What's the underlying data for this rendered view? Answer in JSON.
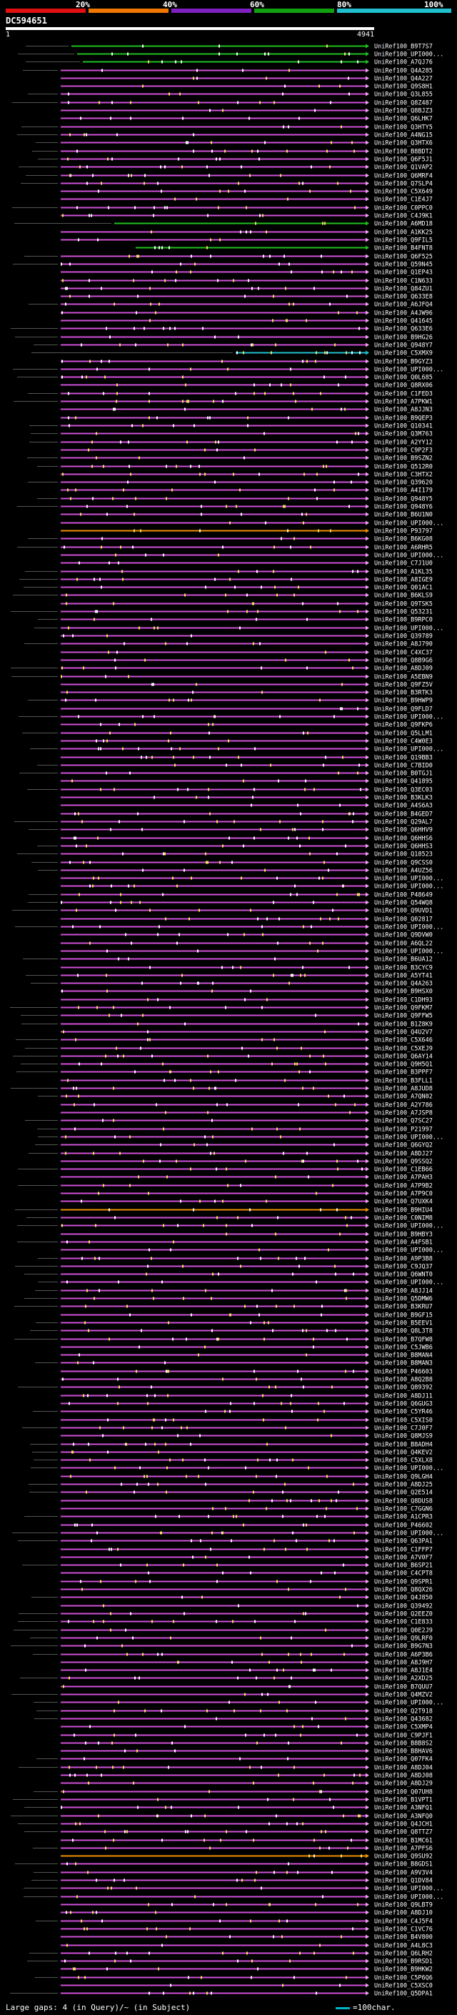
{
  "legend": {
    "labels": [
      "20%",
      "40%",
      "60%",
      "80%",
      "100%"
    ],
    "colors": [
      "#e01010",
      "#f07800",
      "#8020c0",
      "#10a010",
      "#20c0d0"
    ]
  },
  "query": {
    "id": "DC594651",
    "start": "1",
    "end": "4941"
  },
  "hits": [
    "UniRef100_B9T7S7",
    "UniRef100_UPI000...",
    "UniRef100_A7QJ76",
    "UniRef100_Q4A285",
    "UniRef100_Q4A227",
    "UniRef100_Q9S8H1",
    "UniRef100_Q3L855",
    "UniRef100_Q8Z487",
    "UniRef100_Q8BJZ3",
    "UniRef100_Q6LHK7",
    "UniRef100_Q3HTY5",
    "UniRef100_A4NG15",
    "UniRef100_Q3HTX6",
    "UniRef100_B8BDT2",
    "UniRef100_Q6F5J1",
    "UniRef100_Q1VAP2",
    "UniRef100_Q6MRF4",
    "UniRef100_Q7SLP4",
    "UniRef100_C5X649",
    "UniRef100_C1E4J7",
    "UniRef100_C0PPC0",
    "UniRef100_C4J9K1",
    "UniRef100_A6MD18",
    "UniRef100_A1KK25",
    "UniRef100_Q9FIL5",
    "UniRef100_B4FNT8",
    "UniRef100_Q6F525",
    "UniRef100_Q59N45",
    "UniRef100_Q1EP43",
    "UniRef100_C1N633",
    "UniRef100_Q84ZU1",
    "UniRef100_Q633E8",
    "UniRef100_A6JFQ4",
    "UniRef100_A4JW96",
    "UniRef100_Q41645",
    "UniRef100_Q633E6",
    "UniRef100_B9HG26",
    "UniRef100_Q948Y7",
    "UniRef100_C5XMX9",
    "UniRef100_B9GYZ3",
    "UniRef100_UPI000...",
    "UniRef100_Q0L685",
    "UniRef100_Q8RX06",
    "UniRef100_C1FED3",
    "UniRef100_A7PKW1",
    "UniRef100_A8JJN3",
    "UniRef100_B9QEP3",
    "UniRef100_Q10341",
    "UniRef100_Q3M763",
    "UniRef100_A2YY12",
    "UniRef100_C9P2F3",
    "UniRef100_B9SZN2",
    "UniRef100_Q512R0",
    "UniRef100_C3HTX2",
    "UniRef100_Q39620",
    "UniRef100_A4I179",
    "UniRef100_Q948Y5",
    "UniRef100_Q948Y6",
    "UniRef100_B6U1N0",
    "UniRef100_UPI000...",
    "UniRef100_P93797",
    "UniRef100_B6KG08",
    "UniRef100_A6RHR5",
    "UniRef100_UPI000...",
    "UniRef100_C7J1U0",
    "UniRef100_A1KL35",
    "UniRef100_A8IGE9",
    "UniRef100_Q01AC1",
    "UniRef100_B6KLS9",
    "UniRef100_Q9TSK5",
    "UniRef100_Q53231",
    "UniRef100_B9RPC0",
    "UniRef100_UPI000...",
    "UniRef100_Q39789",
    "UniRef100_A8J790",
    "UniRef100_C4XC37",
    "UniRef100_Q8B9G6",
    "UniRef100_A8DJ09",
    "UniRef100_A5EBN9",
    "UniRef100_Q9FZ5V",
    "UniRef100_B3RTK3",
    "UniRef100_B9HWP9",
    "UniRef100_Q9FLD7",
    "UniRef100_UPI000...",
    "UniRef100_Q9FKP6",
    "UniRef100_Q5LLM1",
    "UniRef100_C4W0E3",
    "UniRef100_UPI000...",
    "UniRef100_Q19BB3",
    "UniRef100_C7BID0",
    "UniRef100_B0TGJ1",
    "UniRef100_Q41895",
    "UniRef100_Q3EC03",
    "UniRef100_B3KLK3",
    "UniRef100_A4S6A3",
    "UniRef100_B4GED7",
    "UniRef100_Q29AL7",
    "UniRef100_Q6HHV9",
    "UniRef100_Q6HHS6",
    "UniRef100_Q6HHS3",
    "UniRef100_Q18523",
    "UniRef100_Q9CSS0",
    "UniRef100_A4UZ56",
    "UniRef100_UPI000...",
    "UniRef100_UPI000...",
    "UniRef100_P48649",
    "UniRef100_Q54WQ8",
    "UniRef100_Q9UVD1",
    "UniRef100_Q02817",
    "UniRef100_UPI000...",
    "UniRef100_Q9DVW0",
    "UniRef100_A6QL22",
    "UniRef100_UPI000...",
    "UniRef100_B6UA12",
    "UniRef100_B3CYC9",
    "UniRef100_A5YT41",
    "UniRef100_Q4A263",
    "UniRef100_B9HSX0",
    "UniRef100_C1DH93",
    "UniRef100_Q9FKM7",
    "UniRef100_Q9FFW5",
    "UniRef100_B1Z8K9",
    "UniRef100_Q4U2V7",
    "UniRef100_C5X646",
    "UniRef100_C5XEJ9",
    "UniRef100_Q6AY14",
    "UniRef100_Q9H5Q1",
    "UniRef100_B3PPF7",
    "UniRef100_B3FLL1",
    "UniRef100_A8JUD8",
    "UniRef100_A7QN02",
    "UniRef100_A2Y786",
    "UniRef100_A7JSP8",
    "UniRef100_Q7SC27",
    "UniRef100_P21997",
    "UniRef100_UPI000...",
    "UniRef100_Q6GYQ2",
    "UniRef100_A8DJ27",
    "UniRef100_Q9SSQ2",
    "UniRef100_C1EB66",
    "UniRef100_A7PAH3",
    "UniRef100_A7P9B2",
    "UniRef100_A7P9C0",
    "UniRef100_Q7UXK4",
    "UniRef100_B9HIU4",
    "UniRef100_C0NIM8",
    "UniRef100_UPI000...",
    "UniRef100_B9HBY3",
    "UniRef100_A4FSB1",
    "UniRef100_UPI000...",
    "UniRef100_A9P3B8",
    "UniRef100_C9JQ37",
    "UniRef100_Q6WNT0",
    "UniRef100_UPI000...",
    "UniRef100_A8JJ14",
    "UniRef100_Q5DMW6",
    "UniRef100_B3KRU7",
    "UniRef100_B9GF15",
    "UniRef100_B5EEV1",
    "UniRef100_Q8L3T8",
    "UniRef100_B7QFW8",
    "UniRef100_C5JWB6",
    "UniRef100_B8MAN4",
    "UniRef100_B8MAN3",
    "UniRef100_P46603",
    "UniRef100_A8Q2B8",
    "UniRef100_Q89392",
    "UniRef100_A8DJ11",
    "UniRef100_Q6GUG3",
    "UniRef100_C5YR46",
    "UniRef100_C5XIS0",
    "UniRef100_C7J0F7",
    "UniRef100_Q8MJS9",
    "UniRef100_B8ADH4",
    "UniRef100_Q4KEV2",
    "UniRef100_C5XLX8",
    "UniRef100_UPI000...",
    "UniRef100_Q9LGH4",
    "UniRef100_A8DJ25",
    "UniRef100_Q2E514",
    "UniRef100_Q8DUS8",
    "UniRef100_C7GGN6",
    "UniRef100_A1CPR3",
    "UniRef100_P46602",
    "UniRef100_UPI000...",
    "UniRef100_Q63PA1",
    "UniRef100_C1FFP7",
    "UniRef100_A7V0F7",
    "UniRef100_B6SP21",
    "UniRef100_C4CPT8",
    "UniRef100_Q9SPR1",
    "UniRef100_Q8QX26",
    "UniRef100_Q4J850",
    "UniRef100_Q39492",
    "UniRef100_Q2EEZ0",
    "UniRef100_C1E833",
    "UniRef100_Q0E2J9",
    "UniRef100_Q9LRF0",
    "UniRef100_B9G7N3",
    "UniRef100_A6P3B6",
    "UniRef100_A8J9H7",
    "UniRef100_A8J1E4",
    "UniRef100_A2XD25",
    "UniRef100_B7QUU7",
    "UniRef100_Q4MZV2",
    "UniRef100_UPI000...",
    "UniRef100_Q2T918",
    "UniRef100_Q43682",
    "UniRef100_C5XMP4",
    "UniRef100_C9PJF1",
    "UniRef100_B8B8S2",
    "UniRef100_B8HAV6",
    "UniRef100_Q07FK4",
    "UniRef100_A8DJ04",
    "UniRef100_A8DJ08",
    "UniRef100_A8DJ29",
    "UniRef100_Q07UH8",
    "UniRef100_B1VPT1",
    "UniRef100_A3NFQ1",
    "UniRef100_A3NFQ0",
    "UniRef100_Q4JCH1",
    "UniRef100_Q8TTZ7",
    "UniRef100_B1MC61",
    "UniRef100_A7PFS6",
    "UniRef100_Q9SU92",
    "UniRef100_B8GDS1",
    "UniRef100_A9V3V4",
    "UniRef100_Q1DV84",
    "UniRef100_UPI000...",
    "UniRef100_UPI000...",
    "UniRef100_Q9LBT9",
    "UniRef100_A8DJ10",
    "UniRef100_C4J5F4",
    "UniRef100_C1VC76",
    "UniRef100_B4V800",
    "UniRef100_A4L8C3",
    "UniRef100_Q6LRH2",
    "UniRef100_B9RSD1",
    "UniRef100_B9HKW2",
    "UniRef100_C5P6Q6",
    "UniRef100_C5XSC0",
    "UniRef100_Q5DPA1"
  ],
  "footer": {
    "left": "Large gaps: 4 (in Query)/~ (in Subject)",
    "right": "=100char."
  }
}
